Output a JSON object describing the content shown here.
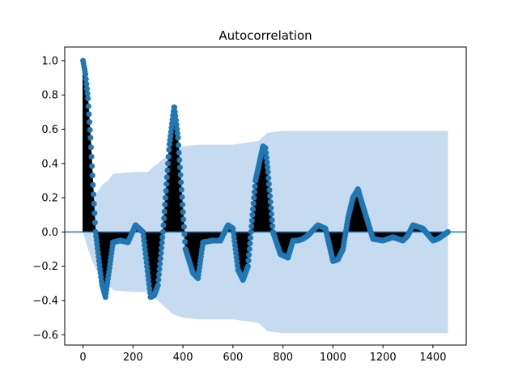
{
  "chart_data": {
    "type": "line",
    "title": "Autocorrelation",
    "xlabel": "",
    "ylabel": "",
    "xlim": [
      -73,
      1533
    ],
    "ylim": [
      -0.66,
      1.08
    ],
    "xticks": [
      0,
      200,
      400,
      600,
      800,
      1000,
      1200,
      1400
    ],
    "yticks": [
      -0.6,
      -0.4,
      -0.2,
      0.0,
      0.2,
      0.4,
      0.6,
      0.8,
      1.0
    ],
    "xtick_labels": [
      "0",
      "200",
      "400",
      "600",
      "800",
      "1000",
      "1200",
      "1400"
    ],
    "ytick_labels": [
      "−0.6",
      "−0.4",
      "−0.2",
      "0.0",
      "0.2",
      "0.4",
      "0.6",
      "0.8",
      "1.0"
    ],
    "grid": false,
    "legend": "none",
    "colors": {
      "marker": "#1f77b4",
      "stem": "#000000",
      "band": "#c6dbef",
      "zero_line": "#1f77b4"
    },
    "acf_keypoints": {
      "x": [
        0,
        10,
        20,
        30,
        50,
        75,
        90,
        120,
        150,
        180,
        210,
        240,
        270,
        285,
        300,
        320,
        345,
        365,
        380,
        410,
        440,
        460,
        480,
        520,
        550,
        580,
        600,
        620,
        640,
        660,
        690,
        720,
        730,
        740,
        760,
        790,
        820,
        840,
        860,
        880,
        900,
        940,
        970,
        1000,
        1020,
        1040,
        1060,
        1080,
        1100,
        1120,
        1160,
        1200,
        1240,
        1280,
        1300,
        1320,
        1340,
        1360,
        1400,
        1420,
        1460
      ],
      "y": [
        1.0,
        0.92,
        0.78,
        0.55,
        0.0,
        -0.3,
        -0.38,
        -0.06,
        -0.05,
        -0.06,
        0.04,
        0.0,
        -0.38,
        -0.37,
        -0.31,
        0.0,
        0.5,
        0.74,
        0.55,
        -0.1,
        -0.24,
        -0.27,
        -0.06,
        -0.05,
        -0.05,
        0.04,
        0.02,
        -0.22,
        -0.28,
        -0.2,
        0.3,
        0.5,
        0.49,
        0.35,
        0.0,
        -0.13,
        -0.15,
        -0.05,
        -0.05,
        -0.04,
        -0.02,
        0.04,
        0.02,
        -0.17,
        -0.16,
        -0.1,
        0.08,
        0.2,
        0.25,
        0.15,
        -0.04,
        -0.05,
        -0.03,
        -0.05,
        -0.02,
        0.04,
        0.03,
        0.02,
        -0.05,
        -0.04,
        0.0
      ]
    },
    "confidence_band": {
      "x": [
        0,
        20,
        40,
        60,
        80,
        100,
        120,
        200,
        260,
        280,
        300,
        360,
        400,
        460,
        600,
        700,
        740,
        800,
        1000,
        1460
      ],
      "upper": [
        0.0,
        0.1,
        0.18,
        0.24,
        0.28,
        0.3,
        0.34,
        0.35,
        0.35,
        0.38,
        0.4,
        0.48,
        0.5,
        0.51,
        0.51,
        0.53,
        0.58,
        0.59,
        0.59,
        0.59
      ],
      "lower": [
        0.0,
        -0.1,
        -0.18,
        -0.24,
        -0.28,
        -0.3,
        -0.34,
        -0.35,
        -0.35,
        -0.38,
        -0.4,
        -0.48,
        -0.5,
        -0.51,
        -0.51,
        -0.53,
        -0.58,
        -0.59,
        -0.59,
        -0.59
      ]
    },
    "n_lags": 1460
  }
}
